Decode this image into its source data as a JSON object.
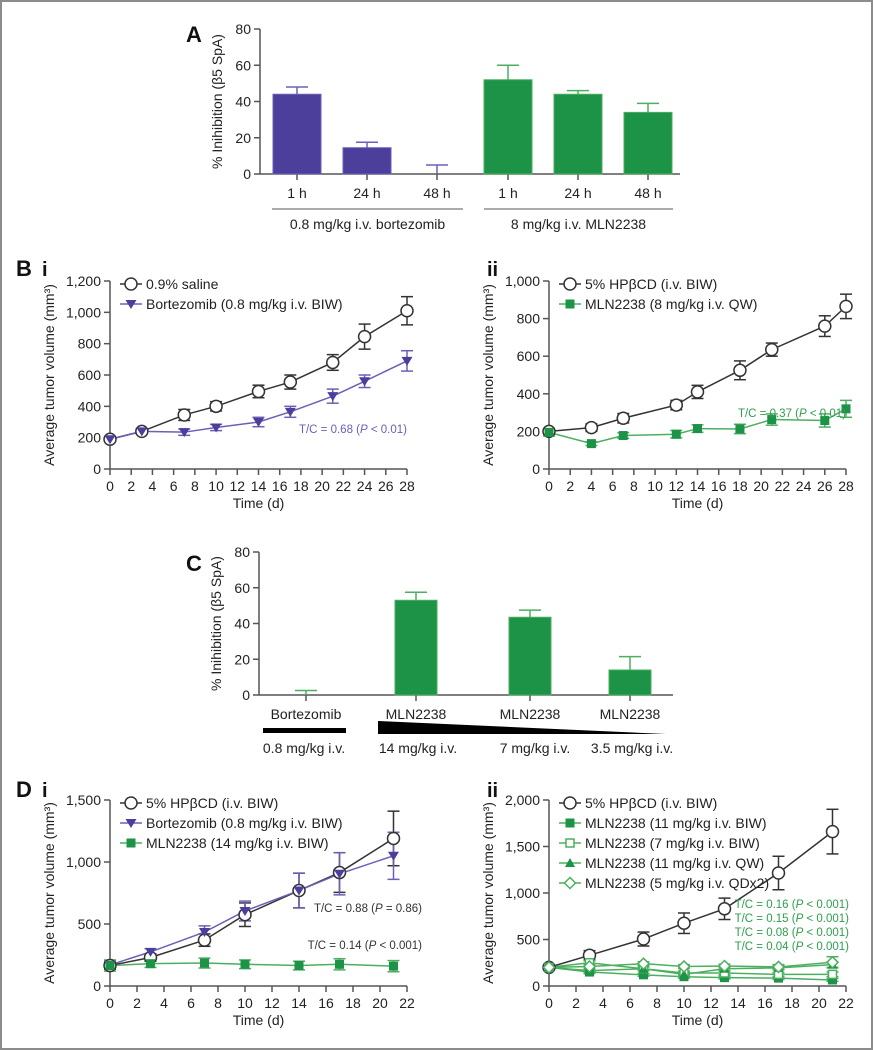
{
  "colors": {
    "bortezomib_bar": "#4b3f9b",
    "bortezomib_line": "#6a60b8",
    "mln_bar": "#1c9346",
    "mln_line": "#4caf5f",
    "control": "#333333",
    "axis": "#555555"
  },
  "chart_data": [
    {
      "id": "A",
      "panel_label": "A",
      "type": "bar",
      "ylabel": "% Inihibition (β5 SpA)",
      "ylim": [
        0,
        80
      ],
      "yticks": [
        "0",
        "20",
        "40",
        "60",
        "80"
      ],
      "categories": [
        "1 h",
        "24 h",
        "48 h",
        "1 h",
        "24 h",
        "48 h"
      ],
      "values": [
        44,
        14.5,
        0,
        52,
        44,
        34
      ],
      "error_upper": [
        48,
        17.5,
        5,
        60,
        46,
        39
      ],
      "bar_series": [
        "bortezomib",
        "bortezomib",
        "bortezomib",
        "mln",
        "mln",
        "mln"
      ],
      "groups": [
        {
          "label": "0.8 mg/kg i.v. bortezomib",
          "members": [
            0,
            1,
            2
          ]
        },
        {
          "label": "8 mg/kg i.v. MLN2238",
          "members": [
            3,
            4,
            5
          ]
        }
      ]
    },
    {
      "id": "Bi",
      "panel_label": "B",
      "sub_label": "i",
      "type": "line",
      "xlabel": "Time (d)",
      "ylabel": "Average tumor volume (mm³)",
      "xlim": [
        0,
        28
      ],
      "ylim": [
        0,
        1200
      ],
      "xticks": [
        "0",
        "2",
        "4",
        "6",
        "8",
        "10",
        "12",
        "14",
        "16",
        "18",
        "20",
        "22",
        "24",
        "26",
        "28"
      ],
      "yticks": [
        "0",
        "200",
        "400",
        "600",
        "800",
        "1,000",
        "1,200"
      ],
      "series": [
        {
          "name": "0.9% saline",
          "style": "control",
          "marker": "open-circle",
          "x": [
            0,
            3,
            7,
            10,
            14,
            17,
            21,
            24,
            28
          ],
          "y": [
            190,
            240,
            345,
            400,
            495,
            555,
            680,
            845,
            1010
          ],
          "err": [
            15,
            15,
            35,
            30,
            40,
            45,
            50,
            80,
            90
          ]
        },
        {
          "name": "Bortezomib (0.8 mg/kg i.v. BIW)",
          "style": "bortezomib",
          "marker": "filled-triangle-down",
          "x": [
            0,
            3,
            7,
            10,
            14,
            17,
            21,
            24,
            28
          ],
          "y": [
            190,
            240,
            235,
            265,
            300,
            365,
            465,
            560,
            690
          ],
          "err": [
            15,
            15,
            20,
            20,
            30,
            35,
            45,
            40,
            65
          ]
        }
      ],
      "annotations": [
        {
          "text": "T/C = 0.68 (P < 0.01)",
          "style": "bortezomib"
        }
      ]
    },
    {
      "id": "Bii",
      "panel_label": "",
      "sub_label": "ii",
      "type": "line",
      "xlabel": "Time (d)",
      "ylabel": "Average tumor volume (mm³)",
      "xlim": [
        0,
        28
      ],
      "ylim": [
        0,
        1000
      ],
      "xticks": [
        "0",
        "2",
        "4",
        "6",
        "8",
        "10",
        "12",
        "14",
        "16",
        "18",
        "20",
        "22",
        "24",
        "26",
        "28"
      ],
      "yticks": [
        "0",
        "200",
        "400",
        "600",
        "800",
        "1,000"
      ],
      "series": [
        {
          "name": "5% HPβCD (i.v. BIW)",
          "style": "control",
          "marker": "open-circle",
          "x": [
            0,
            4,
            7,
            12,
            14,
            18,
            21,
            26,
            28
          ],
          "y": [
            200,
            220,
            270,
            340,
            410,
            525,
            635,
            760,
            865
          ],
          "err": [
            15,
            20,
            25,
            25,
            35,
            50,
            35,
            55,
            65
          ]
        },
        {
          "name": "MLN2238 (8 mg/kg i.v. QW)",
          "style": "mln",
          "marker": "filled-square",
          "x": [
            0,
            4,
            7,
            12,
            14,
            18,
            21,
            26,
            28
          ],
          "y": [
            195,
            135,
            178,
            185,
            215,
            213,
            263,
            258,
            320
          ],
          "err": [
            20,
            10,
            15,
            20,
            20,
            25,
            30,
            35,
            45
          ]
        }
      ],
      "annotations": [
        {
          "text": "T/C = 0.37 (P < 0.01)",
          "style": "mln"
        }
      ]
    },
    {
      "id": "C",
      "panel_label": "C",
      "type": "bar",
      "ylabel": "% Inihibition (β5 SpA)",
      "ylim": [
        0,
        80
      ],
      "yticks": [
        "0",
        "20",
        "40",
        "60",
        "80"
      ],
      "categories": [
        "Bortezomib",
        "MLN2238",
        "MLN2238",
        "MLN2238"
      ],
      "values": [
        0,
        53,
        43.5,
        14
      ],
      "error_upper": [
        2.5,
        57.5,
        47.5,
        21.5
      ],
      "bar_series": [
        "mln",
        "mln",
        "mln",
        "mln"
      ],
      "dose_labels": [
        "0.8 mg/kg i.v.",
        "14 mg/kg i.v.",
        "7 mg/kg i.v.",
        "3.5 mg/kg i.v."
      ]
    },
    {
      "id": "Di",
      "panel_label": "D",
      "sub_label": "i",
      "type": "line",
      "xlabel": "Time (d)",
      "ylabel": "Average tumor volume (mm³)",
      "xlim": [
        0,
        22
      ],
      "ylim": [
        0,
        1500
      ],
      "xticks": [
        "0",
        "2",
        "4",
        "6",
        "8",
        "10",
        "12",
        "14",
        "16",
        "18",
        "20",
        "22"
      ],
      "yticks": [
        "0",
        "500",
        "1,000",
        "1,500"
      ],
      "series": [
        {
          "name": "5% HPβCD (i.v. BIW)",
          "style": "control",
          "marker": "open-circle",
          "x": [
            0,
            3,
            7,
            10,
            14,
            17,
            21
          ],
          "y": [
            165,
            230,
            370,
            575,
            770,
            915,
            1190
          ],
          "err": [
            30,
            30,
            50,
            95,
            140,
            160,
            220
          ]
        },
        {
          "name": "Bortezomib (0.8 mg/kg i.v. BIW)",
          "style": "bortezomib",
          "marker": "filled-triangle-down",
          "x": [
            0,
            3,
            7,
            10,
            14,
            17,
            21
          ],
          "y": [
            170,
            275,
            435,
            605,
            770,
            905,
            1050
          ],
          "err": [
            30,
            25,
            50,
            80,
            140,
            170,
            190
          ]
        },
        {
          "name": "MLN2238 (14 mg/kg i.v. BIW)",
          "style": "mln",
          "marker": "filled-square",
          "x": [
            0,
            3,
            7,
            10,
            14,
            17,
            21
          ],
          "y": [
            165,
            180,
            185,
            175,
            165,
            175,
            160
          ],
          "err": [
            45,
            30,
            40,
            35,
            35,
            45,
            45
          ]
        }
      ],
      "annotations": [
        {
          "text": "T/C = 0.88 (P = 0.86)",
          "style": "control"
        },
        {
          "text": "T/C = 0.14 (P < 0.001)",
          "style": "control"
        }
      ]
    },
    {
      "id": "Dii",
      "panel_label": "",
      "sub_label": "ii",
      "type": "line",
      "xlabel": "Time (d)",
      "ylabel": "Average tumor volume (mm³)",
      "xlim": [
        0,
        22
      ],
      "ylim": [
        0,
        2000
      ],
      "xticks": [
        "0",
        "2",
        "4",
        "6",
        "8",
        "10",
        "12",
        "14",
        "16",
        "18",
        "20",
        "22"
      ],
      "yticks": [
        "0",
        "500",
        "1,000",
        "1,500",
        "2,000"
      ],
      "series": [
        {
          "name": "5% HPβCD (i.v. BIW)",
          "style": "control",
          "marker": "open-circle",
          "x": [
            0,
            3,
            7,
            10,
            13,
            17,
            21
          ],
          "y": [
            200,
            330,
            505,
            675,
            830,
            1215,
            1660
          ],
          "err": [
            20,
            50,
            75,
            110,
            115,
            180,
            240
          ]
        },
        {
          "name": "MLN2238 (11 mg/kg i.v. BIW)",
          "style": "mln",
          "marker": "filled-square",
          "x": [
            0,
            3,
            7,
            10,
            13,
            17,
            21
          ],
          "y": [
            200,
            150,
            120,
            100,
            90,
            85,
            65
          ],
          "err": [
            15,
            15,
            15,
            15,
            15,
            15,
            15
          ]
        },
        {
          "name": "MLN2238 (7 mg/kg i.v. BIW)",
          "style": "mln",
          "marker": "open-square",
          "x": [
            0,
            3,
            7,
            10,
            13,
            17,
            21
          ],
          "y": [
            200,
            250,
            185,
            140,
            140,
            125,
            125
          ],
          "err": [
            15,
            20,
            20,
            20,
            20,
            20,
            25
          ]
        },
        {
          "name": "MLN2238 (11 mg/kg i.v. QW)",
          "style": "mln",
          "marker": "filled-triangle-up",
          "x": [
            0,
            3,
            7,
            10,
            13,
            17,
            21
          ],
          "y": [
            200,
            165,
            185,
            125,
            185,
            195,
            230
          ],
          "err": [
            15,
            20,
            20,
            20,
            20,
            20,
            30
          ]
        },
        {
          "name": "MLN2238 (5 mg/kg i.v. QDx2)",
          "style": "mln",
          "marker": "open-diamond",
          "x": [
            0,
            3,
            7,
            10,
            13,
            17,
            21
          ],
          "y": [
            200,
            210,
            240,
            210,
            215,
            205,
            255
          ],
          "err": [
            15,
            20,
            20,
            20,
            20,
            25,
            60
          ]
        }
      ],
      "annotations": [
        {
          "text": "T/C = 0.16 (P < 0.001)",
          "style": "mln"
        },
        {
          "text": "T/C = 0.15 (P < 0.001)",
          "style": "mln"
        },
        {
          "text": "T/C = 0.08 (P < 0.001)",
          "style": "mln"
        },
        {
          "text": "T/C = 0.04 (P < 0.001)",
          "style": "mln"
        }
      ]
    }
  ]
}
